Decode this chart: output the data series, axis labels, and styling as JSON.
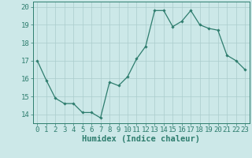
{
  "x": [
    0,
    1,
    2,
    3,
    4,
    5,
    6,
    7,
    8,
    9,
    10,
    11,
    12,
    13,
    14,
    15,
    16,
    17,
    18,
    19,
    20,
    21,
    22,
    23
  ],
  "y": [
    17.0,
    15.9,
    14.9,
    14.6,
    14.6,
    14.1,
    14.1,
    13.8,
    15.8,
    15.6,
    16.1,
    17.1,
    17.8,
    19.8,
    19.8,
    18.9,
    19.2,
    19.8,
    19.0,
    18.8,
    18.7,
    17.3,
    17.0,
    16.5
  ],
  "line_color": "#2e7d6e",
  "marker": "D",
  "markersize": 1.8,
  "bg_color": "#cce8e8",
  "grid_color": "#aacccc",
  "xlabel": "Humidex (Indice chaleur)",
  "xlim": [
    -0.5,
    23.5
  ],
  "ylim": [
    13.5,
    20.3
  ],
  "yticks": [
    14,
    15,
    16,
    17,
    18,
    19,
    20
  ],
  "xtick_labels": [
    "0",
    "1",
    "2",
    "3",
    "4",
    "5",
    "6",
    "7",
    "8",
    "9",
    "10",
    "11",
    "12",
    "13",
    "14",
    "15",
    "16",
    "17",
    "18",
    "19",
    "20",
    "21",
    "22",
    "23"
  ],
  "tick_color": "#2e7d6e",
  "label_color": "#2e7d6e",
  "font_size": 6.5,
  "xlabel_fontsize": 7.5
}
